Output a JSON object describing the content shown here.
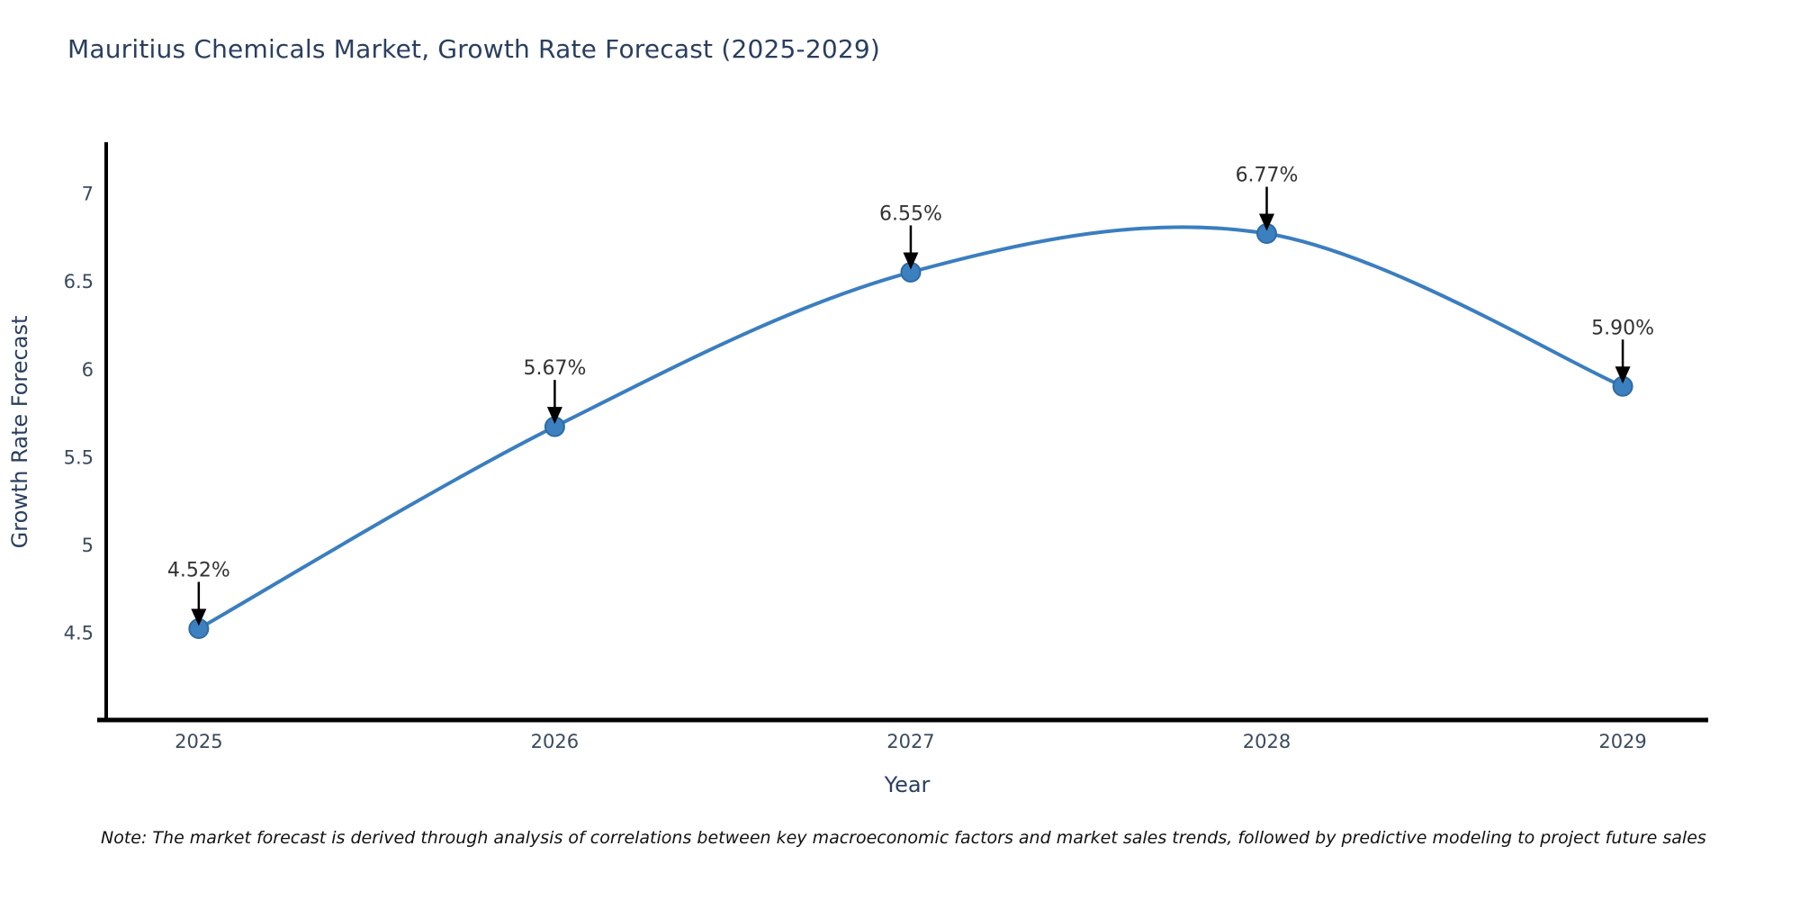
{
  "title": "Mauritius Chemicals Market, Growth Rate Forecast (2025-2029)",
  "note": "Note: The market forecast is derived through analysis of correlations between key macroeconomic factors and market sales trends, followed by predictive modeling to project future sales",
  "chart_data": {
    "type": "line",
    "line_shape": "spline",
    "title": "Mauritius Chemicals Market, Growth Rate Forecast (2025-2029)",
    "xlabel": "Year",
    "ylabel": "Growth Rate Forecast",
    "categories": [
      "2025",
      "2026",
      "2027",
      "2028",
      "2029"
    ],
    "x": [
      2025,
      2026,
      2027,
      2028,
      2029
    ],
    "values": [
      4.52,
      5.67,
      6.55,
      6.77,
      5.9
    ],
    "point_labels": [
      "4.52%",
      "5.67%",
      "6.55%",
      "6.77%",
      "5.90%"
    ],
    "yticks": [
      4.5,
      5,
      5.5,
      6,
      6.5,
      7
    ],
    "ytick_labels": [
      "4.5",
      "5",
      "5.5",
      "6",
      "6.5",
      "7"
    ],
    "ylim": [
      4.0,
      7.28
    ],
    "xlim": [
      2024.74,
      2029.24
    ],
    "grid": false,
    "legend": false,
    "annotations_have_arrows": true
  },
  "colors": {
    "title": "#2a3f5f",
    "axis_label": "#2a3f5f",
    "tick_label": "#3b4a5f",
    "axis_line": "#000000",
    "series_line": "#3a7ebf",
    "marker_fill": "#3c80c0",
    "marker_edge": "#2f6ba6",
    "annotation_text": "#333333",
    "annotation_arrow": "#000000",
    "note_text": "#111111",
    "background": "#ffffff"
  }
}
